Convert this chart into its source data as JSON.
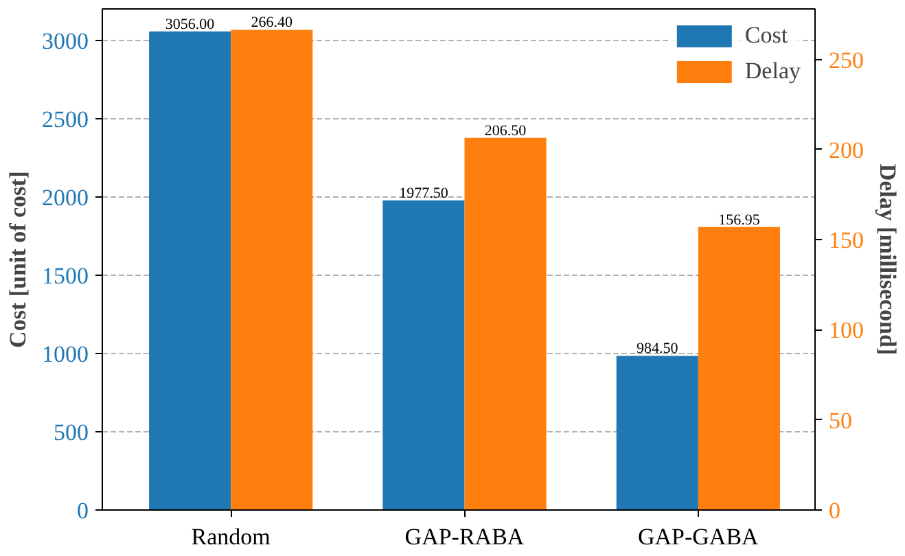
{
  "chart_data": {
    "type": "bar",
    "categories": [
      "Random",
      "GAP-RABA",
      "GAP-GABA"
    ],
    "ylabel": "Cost [unit of cost]",
    "y2label": "Delay [millisecond]",
    "ylim": [
      0,
      3200
    ],
    "yticks": [
      0,
      500,
      1000,
      1500,
      2000,
      2500,
      3000
    ],
    "y2lim": [
      0,
      278
    ],
    "y2ticks": [
      0,
      50,
      100,
      150,
      200,
      250
    ],
    "grid": "y",
    "legend": "top right",
    "series": [
      {
        "name": "Cost",
        "color": "#1f77b4",
        "values": [
          3056.0,
          1977.5,
          984.5
        ],
        "value_labels": [
          "3056.00",
          "1977.50",
          "984.50"
        ]
      },
      {
        "name": "Delay",
        "color": "#ff7f0e",
        "axis": "y2",
        "values": [
          266.4,
          206.5,
          156.95
        ],
        "value_labels": [
          "266.40",
          "206.50",
          "156.95"
        ]
      }
    ]
  }
}
